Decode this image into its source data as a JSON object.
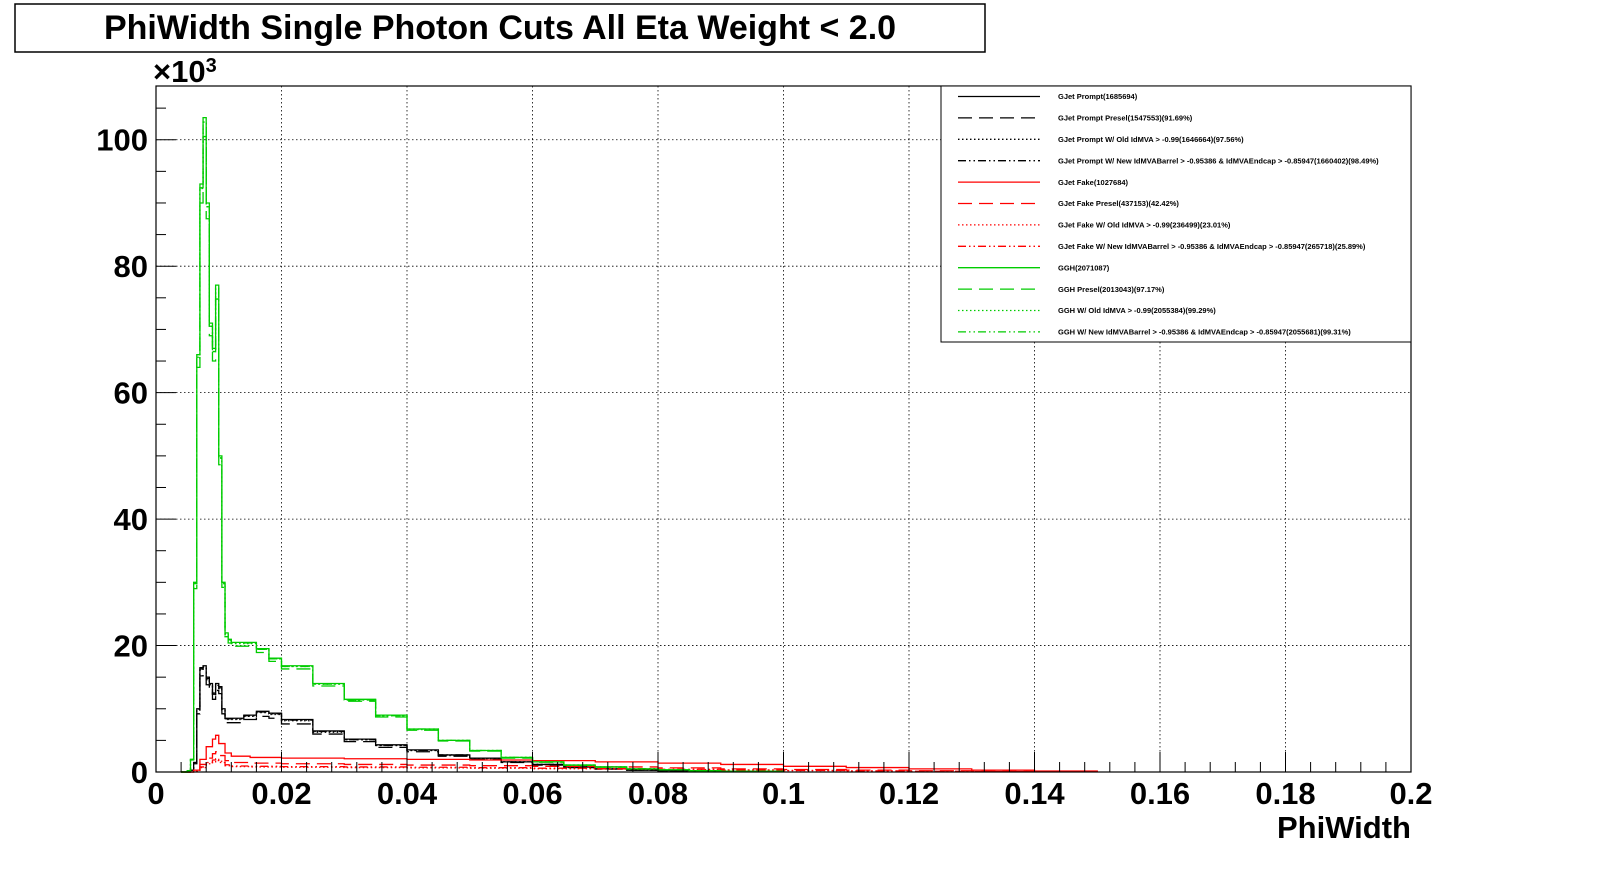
{
  "chart_data": {
    "type": "line",
    "title": "PhiWidth Single Photon Cuts All Eta Weight < 2.0",
    "xlabel": "PhiWidth",
    "ylabel": "",
    "y_multiplier_label": "×10",
    "y_multiplier_exponent": "3",
    "xlim": [
      0,
      0.2
    ],
    "ylim": [
      0,
      108.5
    ],
    "x_ticks": [
      "0",
      "0.02",
      "0.04",
      "0.06",
      "0.08",
      "0.1",
      "0.12",
      "0.14",
      "0.16",
      "0.18",
      "0.2"
    ],
    "x_tick_values": [
      0,
      0.02,
      0.04,
      0.06,
      0.08,
      0.1,
      0.12,
      0.14,
      0.16,
      0.18,
      0.2
    ],
    "y_ticks": [
      "0",
      "20",
      "40",
      "60",
      "80",
      "100"
    ],
    "y_tick_values": [
      0,
      20,
      40,
      60,
      80,
      100
    ],
    "grid": true,
    "legend_position": "top-right",
    "series": [
      {
        "name": "GJet Prompt(1685694)",
        "color": "#000000",
        "dash": "solid",
        "x": [
          0.004,
          0.0055,
          0.006,
          0.0065,
          0.007,
          0.0075,
          0.008,
          0.0085,
          0.009,
          0.0095,
          0.01,
          0.0105,
          0.011,
          0.012,
          0.014,
          0.016,
          0.018,
          0.02,
          0.025,
          0.03,
          0.035,
          0.04,
          0.045,
          0.05,
          0.055,
          0.06,
          0.065,
          0.07,
          0.075,
          0.08,
          0.09,
          0.1
        ],
        "values": [
          0,
          0.3,
          1.5,
          10,
          16.5,
          16.8,
          15,
          14,
          12.5,
          14,
          13.5,
          10,
          8.5,
          8.5,
          9,
          9.6,
          9.3,
          8.3,
          6.5,
          5.2,
          4.3,
          3.5,
          2.7,
          2.2,
          1.6,
          1.2,
          0.8,
          0.5,
          0.3,
          0.2,
          0.1,
          0
        ]
      },
      {
        "name": "GJet Prompt Presel(1547553)(91.69%)",
        "color": "#000000",
        "dash": "long-dash",
        "x": [
          0.004,
          0.0055,
          0.006,
          0.0065,
          0.007,
          0.0075,
          0.008,
          0.0085,
          0.009,
          0.0095,
          0.01,
          0.0105,
          0.011,
          0.012,
          0.014,
          0.016,
          0.018,
          0.02,
          0.025,
          0.03,
          0.035,
          0.04,
          0.045,
          0.05,
          0.055,
          0.06,
          0.065,
          0.07,
          0.075,
          0.08,
          0.09,
          0.1
        ],
        "values": [
          0,
          0.3,
          1.3,
          9.2,
          15.2,
          15.5,
          13.8,
          12.9,
          11.5,
          12.9,
          12.4,
          9.2,
          7.8,
          7.8,
          8.3,
          8.8,
          8.5,
          7.6,
          6,
          4.8,
          3.9,
          3.2,
          2.5,
          2,
          1.5,
          1.1,
          0.7,
          0.45,
          0.28,
          0.18,
          0.09,
          0
        ]
      },
      {
        "name": "GJet Prompt W/ Old IdMVA > -0.99(1646664)(97.56%)",
        "color": "#000000",
        "dash": "dot",
        "x": [
          0.004,
          0.0055,
          0.006,
          0.0065,
          0.007,
          0.0075,
          0.008,
          0.0085,
          0.009,
          0.0095,
          0.01,
          0.0105,
          0.011,
          0.012,
          0.014,
          0.016,
          0.018,
          0.02,
          0.025,
          0.03,
          0.035,
          0.04,
          0.045,
          0.05,
          0.055,
          0.06,
          0.065,
          0.07,
          0.075,
          0.08,
          0.09,
          0.1
        ],
        "values": [
          0,
          0.3,
          1.4,
          9.8,
          16.1,
          16.4,
          14.6,
          13.7,
          12.2,
          13.7,
          13.2,
          9.8,
          8.3,
          8.3,
          8.8,
          9.4,
          9.1,
          8.1,
          6.3,
          5.1,
          4.2,
          3.4,
          2.6,
          2.1,
          1.6,
          1.2,
          0.8,
          0.5,
          0.3,
          0.2,
          0.1,
          0
        ]
      },
      {
        "name": "GJet Prompt W/ New IdMVABarrel > -0.95386 & IdMVAEndcap > -0.85947(1660402)(98.49%)",
        "color": "#000000",
        "dash": "dash-dot-dot",
        "x": [
          0.004,
          0.0055,
          0.006,
          0.0065,
          0.007,
          0.0075,
          0.008,
          0.0085,
          0.009,
          0.0095,
          0.01,
          0.0105,
          0.011,
          0.012,
          0.014,
          0.016,
          0.018,
          0.02,
          0.025,
          0.03,
          0.035,
          0.04,
          0.045,
          0.05,
          0.055,
          0.06,
          0.065,
          0.07,
          0.075,
          0.08,
          0.09,
          0.1
        ],
        "values": [
          0,
          0.3,
          1.5,
          9.9,
          16.3,
          16.6,
          14.8,
          13.8,
          12.3,
          13.8,
          13.3,
          9.9,
          8.4,
          8.4,
          8.9,
          9.5,
          9.2,
          8.2,
          6.4,
          5.1,
          4.2,
          3.4,
          2.7,
          2.2,
          1.6,
          1.2,
          0.8,
          0.5,
          0.3,
          0.2,
          0.1,
          0
        ]
      },
      {
        "name": "GJet Fake(1027684)",
        "color": "#ff0000",
        "dash": "solid",
        "x": [
          0.004,
          0.006,
          0.007,
          0.008,
          0.009,
          0.0095,
          0.01,
          0.011,
          0.012,
          0.015,
          0.02,
          0.03,
          0.04,
          0.05,
          0.06,
          0.07,
          0.08,
          0.09,
          0.1,
          0.11,
          0.12,
          0.13,
          0.14,
          0.15
        ],
        "values": [
          0,
          0.3,
          2,
          4,
          5.2,
          5.8,
          4.5,
          3,
          2.5,
          2.3,
          2.2,
          2.1,
          2,
          1.9,
          1.8,
          1.6,
          1.4,
          1.2,
          0.9,
          0.7,
          0.5,
          0.3,
          0.15,
          0
        ]
      },
      {
        "name": "GJet Fake Presel(437153)(42.42%)",
        "color": "#ff0000",
        "dash": "long-dash",
        "x": [
          0.004,
          0.006,
          0.007,
          0.008,
          0.009,
          0.0095,
          0.01,
          0.011,
          0.012,
          0.015,
          0.02,
          0.03,
          0.04,
          0.05,
          0.06,
          0.07,
          0.08,
          0.09,
          0.1,
          0.11,
          0.12,
          0.13,
          0.14,
          0.15
        ],
        "values": [
          0,
          0.2,
          1.2,
          2.2,
          2.9,
          3.2,
          2.6,
          1.8,
          1.5,
          1.4,
          1.3,
          1.2,
          1.1,
          1,
          0.9,
          0.8,
          0.65,
          0.5,
          0.4,
          0.3,
          0.2,
          0.12,
          0.06,
          0
        ]
      },
      {
        "name": "GJet Fake W/ Old IdMVA > -0.99(236499)(23.01%)",
        "color": "#ff0000",
        "dash": "dot",
        "x": [
          0.004,
          0.006,
          0.007,
          0.008,
          0.009,
          0.0095,
          0.01,
          0.011,
          0.012,
          0.015,
          0.02,
          0.03,
          0.04,
          0.05,
          0.06,
          0.07,
          0.08,
          0.09,
          0.1,
          0.11,
          0.12,
          0.13,
          0.14,
          0.15
        ],
        "values": [
          0,
          0.1,
          0.7,
          1.3,
          1.6,
          1.8,
          1.5,
          1,
          0.85,
          0.8,
          0.75,
          0.7,
          0.65,
          0.6,
          0.52,
          0.45,
          0.38,
          0.3,
          0.22,
          0.15,
          0.1,
          0.06,
          0.03,
          0
        ]
      },
      {
        "name": "GJet Fake W/ New IdMVABarrel > -0.95386 & IdMVAEndcap > -0.85947(265718)(25.89%)",
        "color": "#ff0000",
        "dash": "dash-dot-dot",
        "x": [
          0.004,
          0.006,
          0.007,
          0.008,
          0.009,
          0.0095,
          0.01,
          0.011,
          0.012,
          0.015,
          0.02,
          0.03,
          0.04,
          0.05,
          0.06,
          0.07,
          0.08,
          0.09,
          0.1,
          0.11,
          0.12,
          0.13,
          0.14,
          0.15
        ],
        "values": [
          0,
          0.12,
          0.8,
          1.5,
          1.9,
          2.1,
          1.7,
          1.15,
          0.95,
          0.9,
          0.85,
          0.8,
          0.75,
          0.68,
          0.6,
          0.52,
          0.43,
          0.34,
          0.25,
          0.17,
          0.11,
          0.07,
          0.035,
          0
        ]
      },
      {
        "name": "GGH(2071087)",
        "color": "#00cc00",
        "dash": "solid",
        "x": [
          0.004,
          0.005,
          0.0055,
          0.006,
          0.0065,
          0.007,
          0.0075,
          0.008,
          0.0085,
          0.009,
          0.0095,
          0.01,
          0.0105,
          0.011,
          0.0115,
          0.012,
          0.013,
          0.014,
          0.016,
          0.018,
          0.02,
          0.025,
          0.03,
          0.035,
          0.04,
          0.045,
          0.05,
          0.055,
          0.06,
          0.065,
          0.07,
          0.075,
          0.08,
          0.085,
          0.09,
          0.1
        ],
        "values": [
          0,
          0.2,
          2,
          30,
          66,
          93,
          103.5,
          90,
          71,
          67,
          77,
          50,
          30,
          22,
          21,
          20.5,
          20.5,
          20.5,
          19.5,
          18,
          16.8,
          14,
          11.5,
          9,
          6.8,
          5,
          3.4,
          2.3,
          1.6,
          1.1,
          0.8,
          0.5,
          0.35,
          0.2,
          0.1,
          0
        ]
      },
      {
        "name": "GGH Presel(2013043)(97.17%)",
        "color": "#00cc00",
        "dash": "long-dash",
        "x": [
          0.004,
          0.005,
          0.0055,
          0.006,
          0.0065,
          0.007,
          0.0075,
          0.008,
          0.0085,
          0.009,
          0.0095,
          0.01,
          0.0105,
          0.011,
          0.0115,
          0.012,
          0.013,
          0.014,
          0.016,
          0.018,
          0.02,
          0.025,
          0.03,
          0.035,
          0.04,
          0.045,
          0.05,
          0.055,
          0.06,
          0.065,
          0.07,
          0.075,
          0.08,
          0.085,
          0.09,
          0.1
        ],
        "values": [
          0,
          0.2,
          1.9,
          29,
          64,
          90,
          100.5,
          87.5,
          69,
          65,
          74.8,
          48.6,
          29.2,
          21.4,
          20.4,
          19.9,
          19.9,
          19.9,
          18.9,
          17.5,
          16.3,
          13.6,
          11.2,
          8.7,
          6.6,
          4.9,
          3.3,
          2.2,
          1.55,
          1.05,
          0.75,
          0.48,
          0.34,
          0.19,
          0.1,
          0
        ]
      },
      {
        "name": "GGH W/ Old IdMVA > -0.99(2055384)(99.29%)",
        "color": "#00cc00",
        "dash": "dot",
        "x": [
          0.004,
          0.005,
          0.0055,
          0.006,
          0.0065,
          0.007,
          0.0075,
          0.008,
          0.0085,
          0.009,
          0.0095,
          0.01,
          0.0105,
          0.011,
          0.0115,
          0.012,
          0.013,
          0.014,
          0.016,
          0.018,
          0.02,
          0.025,
          0.03,
          0.035,
          0.04,
          0.045,
          0.05,
          0.055,
          0.06,
          0.065,
          0.07,
          0.075,
          0.08,
          0.085,
          0.09,
          0.1
        ],
        "values": [
          0,
          0.2,
          2,
          29.8,
          65.5,
          92.3,
          102.8,
          89.4,
          70.5,
          66.5,
          76.5,
          49.6,
          29.8,
          21.8,
          20.8,
          20.3,
          20.3,
          20.3,
          19.4,
          17.9,
          16.7,
          13.9,
          11.4,
          8.9,
          6.7,
          5,
          3.4,
          2.3,
          1.6,
          1.1,
          0.8,
          0.5,
          0.35,
          0.2,
          0.1,
          0
        ]
      },
      {
        "name": "GGH W/ New IdMVABarrel > -0.95386 & IdMVAEndcap > -0.85947(2055681)(99.31%)",
        "color": "#00cc00",
        "dash": "dash-dot-dot",
        "x": [
          0.004,
          0.005,
          0.0055,
          0.006,
          0.0065,
          0.007,
          0.0075,
          0.008,
          0.0085,
          0.009,
          0.0095,
          0.01,
          0.0105,
          0.011,
          0.0115,
          0.012,
          0.013,
          0.014,
          0.016,
          0.018,
          0.02,
          0.025,
          0.03,
          0.035,
          0.04,
          0.045,
          0.05,
          0.055,
          0.06,
          0.065,
          0.07,
          0.075,
          0.08,
          0.085,
          0.09,
          0.1
        ],
        "values": [
          0,
          0.2,
          2,
          29.8,
          65.6,
          92.4,
          102.8,
          89.4,
          70.5,
          66.5,
          76.5,
          49.7,
          29.8,
          21.8,
          20.9,
          20.4,
          20.4,
          20.4,
          19.4,
          17.9,
          16.7,
          13.9,
          11.4,
          8.9,
          6.8,
          5,
          3.4,
          2.3,
          1.6,
          1.1,
          0.8,
          0.5,
          0.35,
          0.2,
          0.1,
          0
        ]
      }
    ]
  }
}
